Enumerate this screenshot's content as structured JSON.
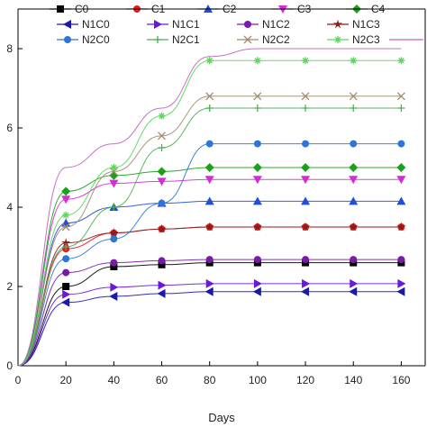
{
  "chart_data": {
    "type": "line",
    "title": "",
    "xlabel": "Days",
    "ylabel": "",
    "xlim": [
      0,
      170
    ],
    "ylim": [
      0,
      9.0
    ],
    "xticks": [
      0,
      20,
      40,
      60,
      80,
      100,
      120,
      140,
      160
    ],
    "yticks": [
      0,
      2,
      4,
      6,
      8
    ],
    "ytick_labels": [
      "0",
      "2",
      "4",
      "6",
      "8"
    ],
    "grid": false,
    "legend_position": "top",
    "x": [
      20,
      40,
      60,
      80,
      100,
      120,
      140,
      160
    ],
    "series": [
      {
        "name": "C0",
        "color": "#000000",
        "marker": "square",
        "values": [
          2.0,
          2.5,
          2.55,
          2.6,
          2.6,
          2.6,
          2.6,
          2.6
        ]
      },
      {
        "name": "C1",
        "color": "#e31a1c",
        "marker": "circle",
        "values": [
          2.95,
          3.35,
          3.45,
          3.5,
          3.5,
          3.5,
          3.5,
          3.5
        ]
      },
      {
        "name": "C2",
        "color": "#1f4fd6",
        "marker": "triangle-up",
        "values": [
          3.6,
          4.0,
          4.1,
          4.15,
          4.15,
          4.15,
          4.15,
          4.15
        ]
      },
      {
        "name": "C3",
        "color": "#d62bd6",
        "marker": "triangle-down",
        "values": [
          4.2,
          4.6,
          4.65,
          4.7,
          4.7,
          4.7,
          4.7,
          4.7
        ]
      },
      {
        "name": "C4",
        "color": "#1aa01a",
        "marker": "diamond",
        "values": [
          4.4,
          4.8,
          4.9,
          5.0,
          5.0,
          5.0,
          5.0,
          5.0
        ]
      },
      {
        "name": "N1C0",
        "color": "#1a1aa8",
        "marker": "triangle-left",
        "values": [
          1.6,
          1.75,
          1.82,
          1.87,
          1.87,
          1.87,
          1.87,
          1.87
        ]
      },
      {
        "name": "N1C1",
        "color": "#6a1ad6",
        "marker": "triangle-right",
        "values": [
          1.8,
          1.98,
          2.03,
          2.07,
          2.07,
          2.07,
          2.07,
          2.07
        ]
      },
      {
        "name": "N1C2",
        "color": "#7a1aa8",
        "marker": "circle",
        "values": [
          2.35,
          2.6,
          2.65,
          2.68,
          2.68,
          2.68,
          2.68,
          2.68
        ]
      },
      {
        "name": "N1C3",
        "color": "#8b1a1a",
        "marker": "star",
        "values": [
          3.1,
          3.35,
          3.45,
          3.5,
          3.5,
          3.5,
          3.5,
          3.5
        ]
      },
      {
        "name": "N2C0",
        "color": "#2e75d6",
        "marker": "circle",
        "values": [
          2.7,
          3.2,
          4.1,
          5.6,
          5.6,
          5.6,
          5.6,
          5.6
        ]
      },
      {
        "name": "N2C1",
        "color": "#4caf50",
        "marker": "plus",
        "values": [
          3.0,
          4.0,
          5.5,
          6.5,
          6.5,
          6.5,
          6.5,
          6.5
        ]
      },
      {
        "name": "N2C2",
        "color": "#a08a70",
        "marker": "x",
        "values": [
          3.5,
          4.9,
          5.8,
          6.8,
          6.8,
          6.8,
          6.8,
          6.8
        ]
      },
      {
        "name": "N2C3",
        "color": "#5ad65a",
        "marker": "asterisk",
        "values": [
          3.8,
          5.0,
          6.3,
          7.7,
          7.7,
          7.7,
          7.7,
          7.7
        ]
      },
      {
        "name": "",
        "color": "#c060c0",
        "marker": "none",
        "values": [
          5.0,
          5.6,
          6.5,
          7.8,
          8.0,
          8.0,
          8.0,
          8.0
        ]
      }
    ]
  }
}
